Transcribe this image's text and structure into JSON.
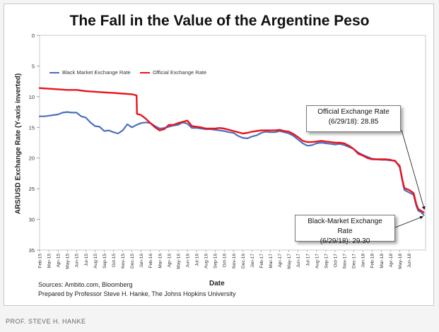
{
  "chart_data": {
    "type": "line",
    "title": "The Fall in the Value of the Argentine Peso",
    "xlabel": "Date",
    "ylabel": "ARS/USD Exchange Rate (Y-axis inverted)",
    "ylim": [
      0,
      35
    ],
    "y_inverted": true,
    "y_ticks": [
      0,
      5,
      10,
      15,
      20,
      25,
      30,
      35
    ],
    "x_tick_labels": [
      "Feb-15",
      "Mar-15",
      "Apr-15",
      "May-15",
      "Jun-15",
      "Jul-15",
      "Aug-15",
      "Sep-15",
      "Oct-15",
      "Nov-15",
      "Dec-15",
      "Jan-16",
      "Feb-16",
      "Mar-16",
      "Apr-16",
      "May-16",
      "Jun-16",
      "Jul-16",
      "Aug-16",
      "Sep-16",
      "Oct-16",
      "Nov-16",
      "Dec-16",
      "Jan-17",
      "Feb-17",
      "Mar-17",
      "Apr-17",
      "May-17",
      "Jun-17",
      "Jul-17",
      "Aug-17",
      "Sep-17",
      "Oct-17",
      "Nov-17",
      "Dec-17",
      "Jan-18",
      "Feb-18",
      "Mar-18",
      "Apr-18",
      "May-18",
      "Jun-18"
    ],
    "xlim": [
      0,
      41.8
    ],
    "legend": {
      "position": "top-left",
      "entries": [
        "Black Market Exchange Rate",
        "Official Exchange Rate"
      ]
    },
    "series": [
      {
        "name": "Black Market Exchange Rate",
        "color": "#4a6fc0",
        "points": [
          [
            0,
            13.2
          ],
          [
            0.5,
            13.2
          ],
          [
            1,
            13.1
          ],
          [
            1.5,
            13.0
          ],
          [
            2,
            12.9
          ],
          [
            2.5,
            12.6
          ],
          [
            3,
            12.5
          ],
          [
            3.5,
            12.6
          ],
          [
            4,
            12.6
          ],
          [
            4.5,
            13.2
          ],
          [
            5,
            13.4
          ],
          [
            5.5,
            14.2
          ],
          [
            6,
            14.8
          ],
          [
            6.5,
            14.9
          ],
          [
            7,
            15.6
          ],
          [
            7.5,
            15.5
          ],
          [
            8,
            15.8
          ],
          [
            8.5,
            16.0
          ],
          [
            9,
            15.5
          ],
          [
            9.5,
            14.5
          ],
          [
            10,
            15.0
          ],
          [
            10.5,
            14.6
          ],
          [
            11,
            14.3
          ],
          [
            11.5,
            14.2
          ],
          [
            12,
            14.3
          ],
          [
            12.5,
            14.8
          ],
          [
            13,
            15.2
          ],
          [
            13.5,
            15.1
          ],
          [
            14,
            14.9
          ],
          [
            14.5,
            14.7
          ],
          [
            15,
            14.6
          ],
          [
            15.5,
            14.2
          ],
          [
            16,
            14.4
          ],
          [
            16.5,
            15.1
          ],
          [
            17,
            15.1
          ],
          [
            17.5,
            15.2
          ],
          [
            18,
            15.3
          ],
          [
            18.5,
            15.3
          ],
          [
            19,
            15.4
          ],
          [
            19.5,
            15.5
          ],
          [
            20,
            15.6
          ],
          [
            20.5,
            15.8
          ],
          [
            21,
            15.9
          ],
          [
            21.5,
            16.4
          ],
          [
            22,
            16.7
          ],
          [
            22.5,
            16.8
          ],
          [
            23,
            16.5
          ],
          [
            23.5,
            16.3
          ],
          [
            24,
            15.9
          ],
          [
            24.5,
            15.7
          ],
          [
            25,
            15.8
          ],
          [
            25.5,
            15.8
          ],
          [
            26,
            15.6
          ],
          [
            26.5,
            15.8
          ],
          [
            27,
            16.0
          ],
          [
            27.5,
            16.4
          ],
          [
            28,
            17.0
          ],
          [
            28.5,
            17.6
          ],
          [
            29,
            18.0
          ],
          [
            29.5,
            17.9
          ],
          [
            30,
            17.6
          ],
          [
            30.5,
            17.5
          ],
          [
            31,
            17.6
          ],
          [
            31.5,
            17.7
          ],
          [
            32,
            17.8
          ],
          [
            32.5,
            17.7
          ],
          [
            33,
            17.9
          ],
          [
            33.5,
            18.2
          ],
          [
            34,
            18.5
          ],
          [
            34.5,
            19.1
          ],
          [
            35,
            19.5
          ],
          [
            35.5,
            19.8
          ],
          [
            36,
            20.1
          ],
          [
            36.5,
            20.2
          ],
          [
            37,
            20.3
          ],
          [
            37.5,
            20.3
          ],
          [
            38,
            20.4
          ],
          [
            38.5,
            20.4
          ],
          [
            39,
            21.5
          ],
          [
            39.3,
            23.8
          ],
          [
            39.5,
            25.2
          ],
          [
            40,
            25.6
          ],
          [
            40.5,
            26.0
          ],
          [
            40.8,
            27.8
          ],
          [
            41,
            28.6
          ],
          [
            41.3,
            28.8
          ],
          [
            41.6,
            29.3
          ]
        ]
      },
      {
        "name": "Official Exchange Rate",
        "color": "#e8141c",
        "points": [
          [
            0,
            8.6
          ],
          [
            1,
            8.7
          ],
          [
            2,
            8.8
          ],
          [
            3,
            8.9
          ],
          [
            4,
            8.9
          ],
          [
            5,
            9.1
          ],
          [
            6,
            9.2
          ],
          [
            7,
            9.3
          ],
          [
            8,
            9.4
          ],
          [
            9,
            9.5
          ],
          [
            10,
            9.6
          ],
          [
            10.5,
            9.8
          ],
          [
            10.55,
            12.8
          ],
          [
            11,
            13.0
          ],
          [
            11.5,
            13.6
          ],
          [
            12,
            14.3
          ],
          [
            12.5,
            15.0
          ],
          [
            13,
            15.5
          ],
          [
            13.5,
            15.3
          ],
          [
            14,
            14.6
          ],
          [
            14.5,
            14.6
          ],
          [
            15,
            14.3
          ],
          [
            15.5,
            14.1
          ],
          [
            16,
            13.9
          ],
          [
            16.5,
            14.8
          ],
          [
            17,
            14.9
          ],
          [
            17.5,
            15.0
          ],
          [
            18,
            15.2
          ],
          [
            18.5,
            15.2
          ],
          [
            19,
            15.2
          ],
          [
            19.5,
            15.1
          ],
          [
            20,
            15.2
          ],
          [
            20.5,
            15.4
          ],
          [
            21,
            15.6
          ],
          [
            21.5,
            15.8
          ],
          [
            22,
            16.0
          ],
          [
            22.5,
            15.9
          ],
          [
            23,
            15.7
          ],
          [
            23.5,
            15.6
          ],
          [
            24,
            15.5
          ],
          [
            24.5,
            15.5
          ],
          [
            25,
            15.5
          ],
          [
            25.5,
            15.5
          ],
          [
            26,
            15.4
          ],
          [
            26.5,
            15.6
          ],
          [
            27,
            15.7
          ],
          [
            27.5,
            16.1
          ],
          [
            28,
            16.6
          ],
          [
            28.5,
            17.2
          ],
          [
            29,
            17.4
          ],
          [
            29.5,
            17.4
          ],
          [
            30,
            17.3
          ],
          [
            30.5,
            17.2
          ],
          [
            31,
            17.3
          ],
          [
            31.5,
            17.4
          ],
          [
            32,
            17.5
          ],
          [
            32.5,
            17.5
          ],
          [
            33,
            17.6
          ],
          [
            33.5,
            18.0
          ],
          [
            34,
            18.5
          ],
          [
            34.5,
            19.3
          ],
          [
            35,
            19.6
          ],
          [
            35.5,
            20.0
          ],
          [
            36,
            20.2
          ],
          [
            36.5,
            20.2
          ],
          [
            37,
            20.2
          ],
          [
            37.5,
            20.2
          ],
          [
            38,
            20.3
          ],
          [
            38.5,
            20.5
          ],
          [
            39,
            21.3
          ],
          [
            39.3,
            23.6
          ],
          [
            39.5,
            24.9
          ],
          [
            40,
            25.2
          ],
          [
            40.5,
            25.7
          ],
          [
            40.8,
            27.5
          ],
          [
            41,
            28.3
          ],
          [
            41.3,
            28.6
          ],
          [
            41.6,
            28.85
          ]
        ]
      }
    ],
    "annotations": [
      {
        "title": "Official Exchange Rate",
        "value": "(6/29/18): 28.85",
        "target_x": 41.6,
        "target_y": 28.85
      },
      {
        "title": "Black-Market Exchange Rate",
        "value": "(6/29/18): 29.30",
        "target_x": 41.6,
        "target_y": 29.3
      }
    ]
  },
  "sources": {
    "line1": "Sources: Ambito.com, Bloomberg",
    "line2": "Prepared by Professor Steve H. Hanke, The Johns Hopkins University"
  },
  "footer": {
    "credit": "PROF. STEVE H. HANKE"
  }
}
